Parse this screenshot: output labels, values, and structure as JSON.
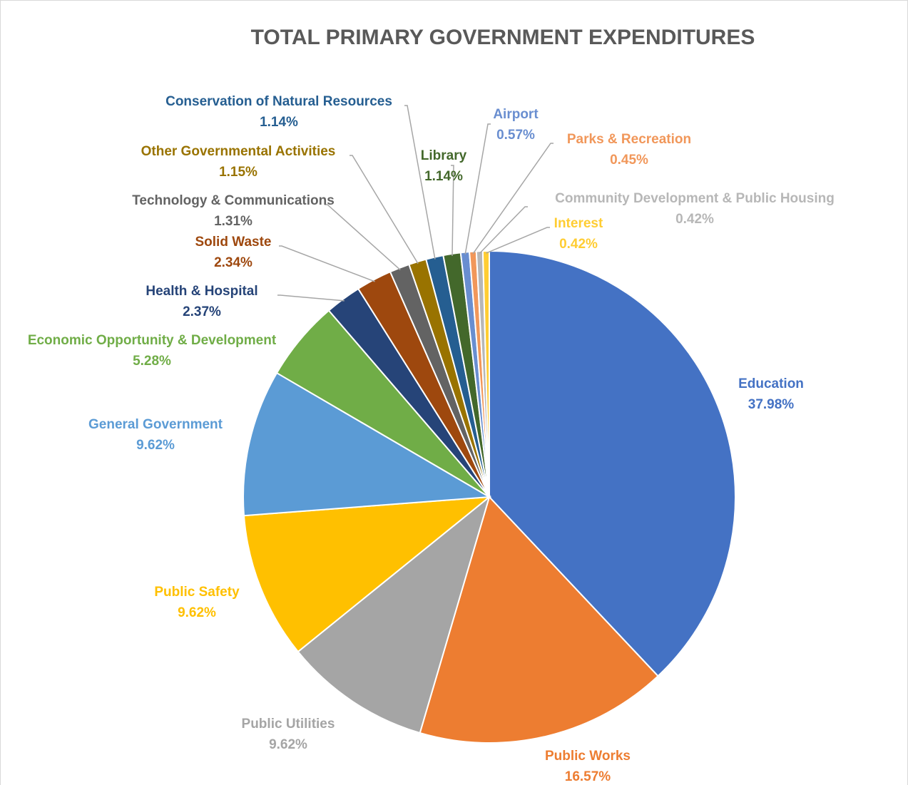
{
  "chart_data": {
    "type": "pie",
    "title": "TOTAL PRIMARY GOVERNMENT EXPENDITURES",
    "slices": [
      {
        "name": "Education",
        "value": 37.98,
        "label": "37.98%",
        "color": "#4472C4"
      },
      {
        "name": "Public Works",
        "value": 16.57,
        "label": "16.57%",
        "color": "#ED7D31"
      },
      {
        "name": "Public Utilities",
        "value": 9.62,
        "label": "9.62%",
        "color": "#A5A5A5"
      },
      {
        "name": "Public Safety",
        "value": 9.62,
        "label": "9.62%",
        "color": "#FFC000"
      },
      {
        "name": "General Government",
        "value": 9.62,
        "label": "9.62%",
        "color": "#5B9BD5"
      },
      {
        "name": "Economic Opportunity & Development",
        "value": 5.28,
        "label": "5.28%",
        "color": "#70AD47"
      },
      {
        "name": "Health & Hospital",
        "value": 2.37,
        "label": "2.37%",
        "color": "#264478"
      },
      {
        "name": "Solid Waste",
        "value": 2.34,
        "label": "2.34%",
        "color": "#9E480E"
      },
      {
        "name": "Technology & Communications",
        "value": 1.31,
        "label": "1.31%",
        "color": "#636363"
      },
      {
        "name": "Other Governmental Activities",
        "value": 1.15,
        "label": "1.15%",
        "color": "#997300"
      },
      {
        "name": "Conservation of Natural Resources",
        "value": 1.14,
        "label": "1.14%",
        "color": "#255E91"
      },
      {
        "name": "Library",
        "value": 1.14,
        "label": "1.14%",
        "color": "#43682B"
      },
      {
        "name": "Airport",
        "value": 0.57,
        "label": "0.57%",
        "color": "#698ED0"
      },
      {
        "name": "Parks & Recreation",
        "value": 0.45,
        "label": "0.45%",
        "color": "#F1975A"
      },
      {
        "name": "Community Development & Public Housing",
        "value": 0.42,
        "label": "0.42%",
        "color": "#B7B7B7"
      },
      {
        "name": "Interest",
        "value": 0.42,
        "label": "0.42%",
        "color": "#FFCD33"
      }
    ]
  }
}
